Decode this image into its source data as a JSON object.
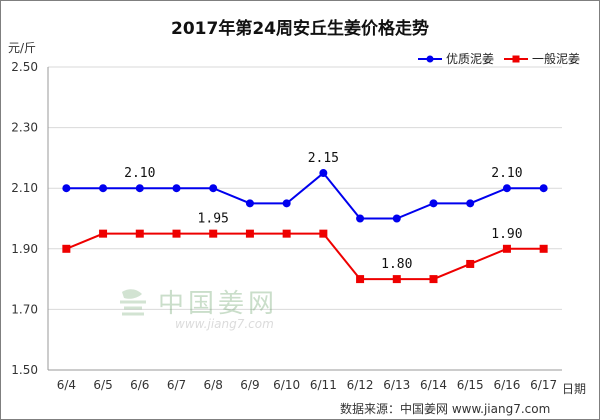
{
  "chart_data": {
    "type": "line",
    "title": "2017年第24周安丘生姜价格走势",
    "ylabel": "元/斤",
    "xlabel": "日期",
    "categories": [
      "6/4",
      "6/5",
      "6/6",
      "6/7",
      "6/8",
      "6/9",
      "6/10",
      "6/11",
      "6/12",
      "6/13",
      "6/14",
      "6/15",
      "6/16",
      "6/17"
    ],
    "yticks": [
      "1.50",
      "1.70",
      "1.90",
      "2.10",
      "2.30",
      "2.50"
    ],
    "ylim": [
      1.5,
      2.5
    ],
    "grid": "horizontal",
    "legend_position": "top-right",
    "series": [
      {
        "name": "优质泥姜",
        "color": "#0000ee",
        "marker": "circle",
        "values": [
          2.1,
          2.1,
          2.1,
          2.1,
          2.1,
          2.05,
          2.05,
          2.15,
          2.0,
          2.0,
          2.05,
          2.05,
          2.1,
          2.1
        ],
        "labels": [
          {
            "index": 2,
            "text": "2.10"
          },
          {
            "index": 7,
            "text": "2.15"
          },
          {
            "index": 12,
            "text": "2.10"
          }
        ]
      },
      {
        "name": "一般泥姜",
        "color": "#ee0000",
        "marker": "square",
        "values": [
          1.9,
          1.95,
          1.95,
          1.95,
          1.95,
          1.95,
          1.95,
          1.95,
          1.8,
          1.8,
          1.8,
          1.85,
          1.9,
          1.9
        ],
        "labels": [
          {
            "index": 4,
            "text": "1.95"
          },
          {
            "index": 9,
            "text": "1.80"
          },
          {
            "index": 12,
            "text": "1.90"
          }
        ]
      }
    ]
  },
  "watermark": {
    "brand": "中国姜网",
    "url": "www.jiang7.com"
  },
  "source_note": "数据来源：中国姜网 www.jiang7.com"
}
